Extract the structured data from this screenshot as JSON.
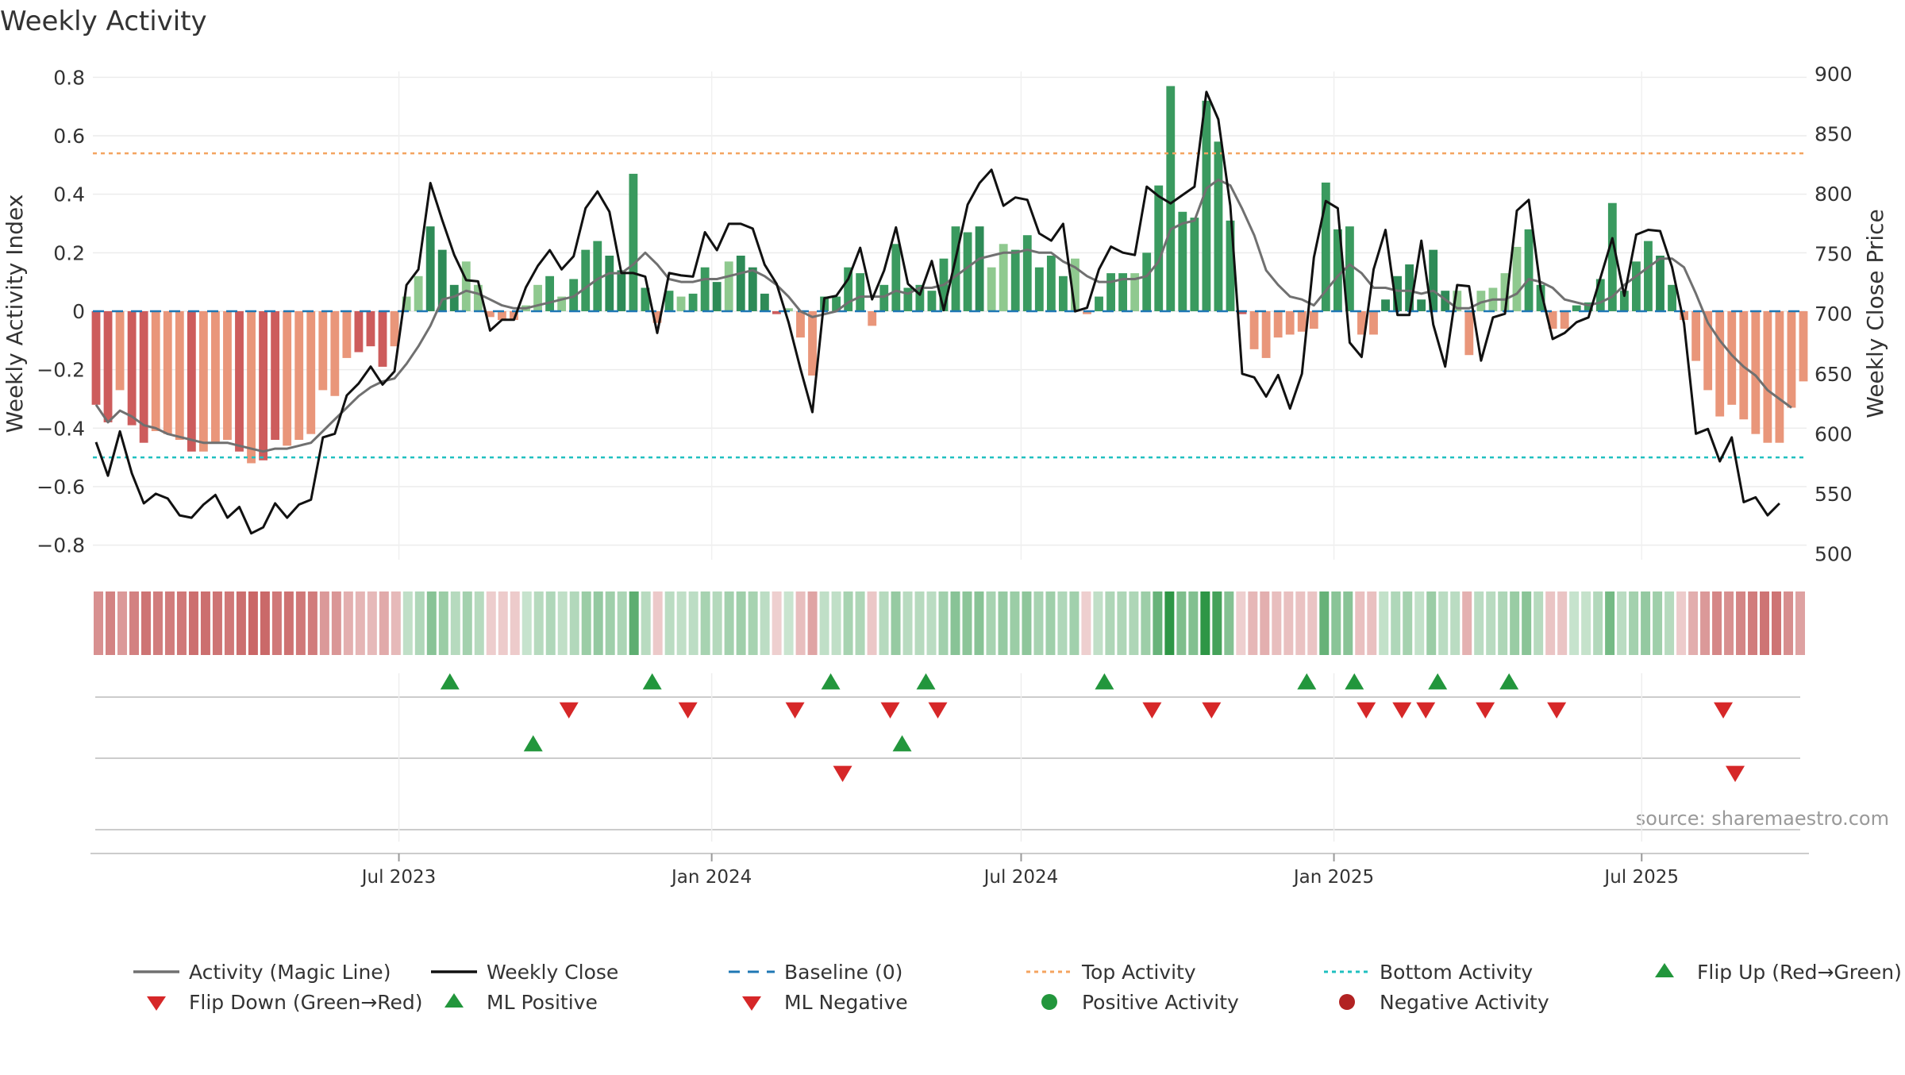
{
  "chart_data": {
    "type": "bar",
    "title": "Weekly Activity",
    "ylabel": "Weekly Activity Index",
    "ylabel_right": "Weekly Close Price",
    "ylim": [
      -0.85,
      0.82
    ],
    "ylim_right": [
      495,
      902
    ],
    "yticks": [
      -0.8,
      -0.6,
      -0.4,
      -0.2,
      0,
      0.2,
      0.4,
      0.6,
      0.8
    ],
    "ytick_labels": [
      "−0.8",
      "−0.6",
      "−0.4",
      "−0.2",
      "0",
      "0.2",
      "0.4",
      "0.6",
      "0.8"
    ],
    "yticks_right": [
      500,
      550,
      600,
      650,
      700,
      750,
      800,
      850,
      900
    ],
    "ytick_labels_right": [
      "500",
      "550",
      "600",
      "650",
      "700",
      "750",
      "800",
      "850",
      "900"
    ],
    "x_start": "2023-01-02",
    "x_end": "2025-10-06",
    "xticks": [
      {
        "date": "2023-07-01",
        "label": "Jul 2023"
      },
      {
        "date": "2024-01-01",
        "label": "Jan 2024"
      },
      {
        "date": "2024-07-01",
        "label": "Jul 2024"
      },
      {
        "date": "2025-01-01",
        "label": "Jan 2025"
      },
      {
        "date": "2025-07-01",
        "label": "Jul 2025"
      }
    ],
    "top_activity": 0.54,
    "bottom_activity": -0.5,
    "baseline": 0,
    "source_text": "source: sharemaestro.com",
    "colors": {
      "positive_strong": "#2e8b57",
      "positive_mid": "#3a9a5f",
      "positive_light": "#8fc98f",
      "negative_strong": "#cd5c5c",
      "negative_light": "#e9967a",
      "magic_line": "#707070",
      "close_line": "#111111",
      "baseline": "#1f77b4",
      "top_activity": "#f4a460",
      "bottom_activity": "#20c0c0",
      "flip_up": "#22963c",
      "flip_down": "#d62728",
      "positive_dot": "#22963c",
      "negative_dot": "#b22222"
    },
    "series": [
      {
        "name": "Activity Index",
        "bar_shades": [
          "strong",
          "strong",
          "light",
          "strong",
          "strong",
          "light",
          "light",
          "light",
          "strong",
          "light",
          "light",
          "light",
          "strong",
          "light",
          "strong",
          "strong",
          "light",
          "light",
          "light",
          "light",
          "light",
          "light",
          "strong",
          "strong",
          "strong",
          "light",
          "light",
          "light",
          "strong",
          "strong",
          "strong",
          "light",
          "light",
          "mid",
          "mid",
          "mid",
          "light",
          "light",
          "mid",
          "light",
          "mid",
          "mid",
          "mid",
          "strong",
          "strong",
          "mid",
          "mid",
          "mid",
          "mid",
          "light",
          "mid",
          "mid",
          "strong",
          "light",
          "strong",
          "strong",
          "strong",
          "strong",
          "light",
          "light",
          "mid",
          "mid",
          "mid",
          "mid",
          "mid",
          "mid",
          "mid",
          "mid",
          "mid",
          "mid",
          "mid",
          "mid",
          "mid",
          "mid",
          "strong",
          "light",
          "light",
          "mid",
          "mid",
          "mid",
          "mid",
          "mid",
          "light",
          "mid",
          "mid",
          "mid",
          "mid",
          "light",
          "mid",
          "mid",
          "mid",
          "mid",
          "mid",
          "mid",
          "mid",
          "mid",
          "strong",
          "mid",
          "mid",
          "mid",
          "mid",
          "mid",
          "mid",
          "mid",
          "mid",
          "mid",
          "mid",
          "mid",
          "strong",
          "strong",
          "strong",
          "strong",
          "strong",
          "strong",
          "light",
          "light",
          "light",
          "light",
          "light",
          "light",
          "mid",
          "mid",
          "mid",
          "mid",
          "mid",
          "mid",
          "mid",
          "mid",
          "mid",
          "mid",
          "mid",
          "strong",
          "mid",
          "light",
          "mid",
          "mid",
          "mid",
          "mid",
          "mid",
          "light",
          "mid",
          "mid",
          "mid",
          "mid",
          "mid",
          "mid",
          "mid",
          "mid",
          "mid",
          "mid",
          "mid",
          "light",
          "mid",
          "mid",
          "mid",
          "mid",
          "mid",
          "strong",
          "strong",
          "strong",
          "strong",
          "strong",
          "strong",
          "strong",
          "strong",
          "strong",
          "strong",
          "strong"
        ],
        "values": [
          -0.32,
          -0.38,
          -0.27,
          -0.39,
          -0.45,
          -0.41,
          -0.42,
          -0.44,
          -0.48,
          -0.48,
          -0.45,
          -0.44,
          -0.48,
          -0.52,
          -0.51,
          -0.44,
          -0.46,
          -0.44,
          -0.42,
          -0.27,
          -0.29,
          -0.16,
          -0.14,
          -0.12,
          -0.19,
          -0.12,
          0.05,
          0.12,
          0.29,
          0.21,
          0.09,
          0.17,
          0.09,
          -0.02,
          -0.03,
          -0.03,
          0.02,
          0.09,
          0.12,
          0.05,
          0.11,
          0.21,
          0.24,
          0.19,
          0.14,
          0.47,
          0.08,
          -0.04,
          0.07,
          0.05,
          0.06,
          0.15,
          0.1,
          0.17,
          0.19,
          0.15,
          0.06,
          -0.01,
          0.01,
          -0.09,
          -0.22,
          0.05,
          0.05,
          0.15,
          0.13,
          -0.05,
          0.09,
          0.23,
          0.08,
          0.09,
          0.07,
          0.18,
          0.29,
          0.27,
          0.29,
          0.15,
          0.23,
          0.21,
          0.26,
          0.15,
          0.19,
          0.12,
          0.18,
          -0.01,
          0.05,
          0.13,
          0.13,
          0.13,
          0.2,
          0.43,
          0.77,
          0.34,
          0.32,
          0.72,
          0.58,
          0.31,
          -0.01,
          -0.13,
          -0.16,
          -0.09,
          -0.08,
          -0.07,
          -0.06,
          0.44,
          0.28,
          0.29,
          -0.08,
          -0.08,
          0.04,
          0.12,
          0.16,
          0.04,
          0.21,
          0.07,
          0.07,
          -0.15,
          0.07,
          0.08,
          0.13,
          0.22,
          0.28,
          0.09,
          -0.06,
          -0.06,
          0.02,
          0.03,
          0.11,
          0.37,
          0.07,
          0.17,
          0.24,
          0.19,
          0.09,
          -0.03,
          -0.17,
          -0.27,
          -0.36,
          -0.32,
          -0.37,
          -0.42,
          -0.45,
          -0.45,
          -0.33,
          -0.24
        ]
      },
      {
        "name": "Activity (Magic Line)",
        "values": [
          -0.32,
          -0.38,
          -0.34,
          -0.36,
          -0.39,
          -0.4,
          -0.42,
          -0.43,
          -0.44,
          -0.45,
          -0.45,
          -0.45,
          -0.46,
          -0.47,
          -0.48,
          -0.47,
          -0.47,
          -0.46,
          -0.45,
          -0.41,
          -0.37,
          -0.33,
          -0.29,
          -0.26,
          -0.24,
          -0.23,
          -0.18,
          -0.12,
          -0.05,
          0.04,
          0.05,
          0.07,
          0.06,
          0.04,
          0.02,
          0.01,
          0.01,
          0.02,
          0.03,
          0.04,
          0.05,
          0.08,
          0.11,
          0.13,
          0.13,
          0.16,
          0.2,
          0.16,
          0.11,
          0.1,
          0.1,
          0.11,
          0.11,
          0.12,
          0.13,
          0.14,
          0.12,
          0.09,
          0.05,
          0.0,
          -0.02,
          -0.01,
          0.0,
          0.03,
          0.05,
          0.05,
          0.05,
          0.07,
          0.06,
          0.08,
          0.08,
          0.09,
          0.12,
          0.15,
          0.18,
          0.19,
          0.2,
          0.2,
          0.21,
          0.2,
          0.2,
          0.17,
          0.15,
          0.12,
          0.1,
          0.1,
          0.11,
          0.11,
          0.12,
          0.17,
          0.28,
          0.3,
          0.31,
          0.42,
          0.45,
          0.43,
          0.35,
          0.26,
          0.14,
          0.09,
          0.05,
          0.04,
          0.02,
          0.07,
          0.12,
          0.16,
          0.13,
          0.08,
          0.08,
          0.07,
          0.07,
          0.06,
          0.07,
          0.04,
          0.01,
          0.01,
          0.03,
          0.04,
          0.04,
          0.06,
          0.11,
          0.1,
          0.08,
          0.04,
          0.03,
          0.02,
          0.03,
          0.05,
          0.09,
          0.12,
          0.15,
          0.18,
          0.18,
          0.15,
          0.06,
          -0.04,
          -0.1,
          -0.15,
          -0.19,
          -0.22,
          -0.27,
          -0.3,
          -0.33
        ]
      },
      {
        "name": "Weekly Close",
        "axis": "right",
        "values": [
          593,
          565,
          602,
          567,
          542,
          550,
          546,
          532,
          530,
          541,
          549,
          530,
          539,
          517,
          522,
          542,
          530,
          541,
          545,
          597,
          600,
          632,
          642,
          656,
          641,
          652,
          724,
          737,
          809,
          778,
          749,
          728,
          727,
          686,
          695,
          695,
          722,
          740,
          753,
          737,
          748,
          788,
          802,
          785,
          734,
          734,
          731,
          684,
          734,
          732,
          731,
          768,
          753,
          775,
          775,
          771,
          741,
          725,
          693,
          654,
          618,
          713,
          715,
          729,
          755,
          712,
          736,
          772,
          725,
          716,
          744,
          703,
          746,
          791,
          809,
          820,
          790,
          797,
          795,
          767,
          761,
          775,
          702,
          705,
          737,
          756,
          751,
          749,
          806,
          798,
          792,
          799,
          806,
          885,
          862,
          790,
          650,
          647,
          631,
          649,
          621,
          650,
          747,
          794,
          788,
          676,
          664,
          737,
          770,
          699,
          699,
          761,
          691,
          656,
          724,
          723,
          661,
          697,
          700,
          786,
          795,
          720,
          679,
          684,
          693,
          697,
          730,
          763,
          715,
          766,
          770,
          769,
          739,
          692,
          600,
          604,
          577,
          597,
          543,
          547,
          532,
          542
        ]
      }
    ],
    "signal_rows": [
      {
        "name": "Flip Up (Red→Green)",
        "marker": "triangle-up",
        "dates": [
          "2023-07-31",
          "2023-11-27",
          "2024-03-11",
          "2024-05-06",
          "2024-08-19",
          "2024-12-16",
          "2025-01-13",
          "2025-03-03",
          "2025-04-14"
        ]
      },
      {
        "name": "Flip Down (Green→Red)",
        "marker": "triangle-down",
        "dates": [
          "2023-10-09",
          "2023-12-18",
          "2024-02-19",
          "2024-04-15",
          "2024-05-13",
          "2024-09-16",
          "2024-10-21",
          "2025-01-20",
          "2025-02-10",
          "2025-02-24",
          "2025-03-31",
          "2025-05-12",
          "2025-08-18"
        ]
      },
      {
        "name": "ML Positive",
        "marker": "triangle-up",
        "dates": [
          "2023-09-18",
          "2024-04-22"
        ]
      },
      {
        "name": "ML Negative",
        "marker": "triangle-down",
        "dates": [
          "2024-03-18",
          "2025-08-25"
        ]
      }
    ],
    "legend": {
      "placement": "bottom",
      "items": [
        {
          "label": "Activity (Magic Line)",
          "kind": "line",
          "color": "#707070"
        },
        {
          "label": "Weekly Close",
          "kind": "line",
          "color": "#111111"
        },
        {
          "label": "Baseline (0)",
          "kind": "dashed",
          "color": "#1f77b4"
        },
        {
          "label": "Top Activity",
          "kind": "dotted",
          "color": "#f4a460"
        },
        {
          "label": "Bottom Activity",
          "kind": "dotted",
          "color": "#20c0c0"
        },
        {
          "label": "Flip Up (Red→Green)",
          "kind": "triangle-up",
          "color": "#22963c"
        },
        {
          "label": "Flip Down (Green→Red)",
          "kind": "triangle-down",
          "color": "#d62728"
        },
        {
          "label": "ML Positive",
          "kind": "triangle-up",
          "color": "#22963c"
        },
        {
          "label": "ML Negative",
          "kind": "triangle-down",
          "color": "#d62728"
        },
        {
          "label": "Positive Activity",
          "kind": "dot",
          "color": "#22963c"
        },
        {
          "label": "Negative Activity",
          "kind": "dot",
          "color": "#b22222"
        }
      ]
    }
  }
}
